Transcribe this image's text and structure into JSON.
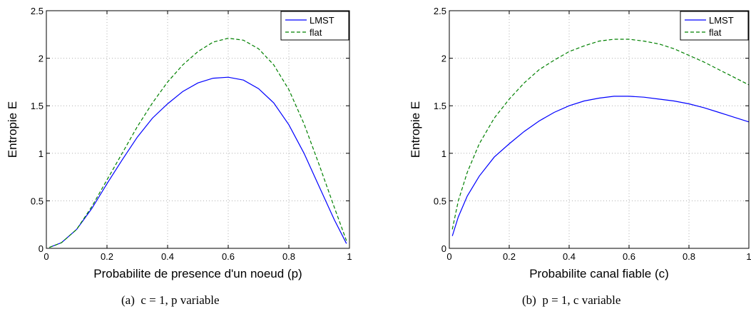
{
  "chart_data": [
    {
      "type": "line",
      "caption": {
        "tag": "(a)",
        "text": "c = 1, p variable"
      },
      "xlabel": "Probabilite de presence d'un noeud (p)",
      "ylabel": "Entropie E",
      "xlim": [
        0,
        1
      ],
      "ylim": [
        0,
        2.5
      ],
      "xticks": [
        "0",
        "0.2",
        "0.4",
        "0.6",
        "0.8",
        "1"
      ],
      "yticks": [
        "0",
        "0.5",
        "1",
        "1.5",
        "2",
        "2.5"
      ],
      "grid": true,
      "legend_position": "top-right",
      "series": [
        {
          "name": "LMST",
          "color": "#0000ff",
          "style": "solid",
          "x": [
            0.01,
            0.05,
            0.1,
            0.15,
            0.2,
            0.25,
            0.3,
            0.35,
            0.4,
            0.45,
            0.5,
            0.55,
            0.6,
            0.65,
            0.7,
            0.75,
            0.8,
            0.85,
            0.9,
            0.95,
            0.99
          ],
          "y": [
            0.01,
            0.06,
            0.2,
            0.42,
            0.68,
            0.93,
            1.17,
            1.37,
            1.52,
            1.65,
            1.74,
            1.79,
            1.8,
            1.77,
            1.68,
            1.53,
            1.3,
            1.0,
            0.65,
            0.3,
            0.05
          ]
        },
        {
          "name": "flat",
          "color": "#008000",
          "style": "dashed",
          "x": [
            0.01,
            0.05,
            0.1,
            0.15,
            0.2,
            0.25,
            0.3,
            0.35,
            0.4,
            0.45,
            0.5,
            0.55,
            0.6,
            0.65,
            0.7,
            0.75,
            0.8,
            0.85,
            0.9,
            0.95,
            0.99
          ],
          "y": [
            0.01,
            0.06,
            0.2,
            0.44,
            0.72,
            1.0,
            1.28,
            1.53,
            1.75,
            1.93,
            2.07,
            2.17,
            2.21,
            2.19,
            2.1,
            1.93,
            1.67,
            1.31,
            0.88,
            0.43,
            0.08
          ]
        }
      ]
    },
    {
      "type": "line",
      "caption": {
        "tag": "(b)",
        "text": "p = 1, c variable"
      },
      "xlabel": "Probabilite canal fiable (c)",
      "ylabel": "Entropie E",
      "xlim": [
        0,
        1
      ],
      "ylim": [
        0,
        2.5
      ],
      "xticks": [
        "0",
        "0.2",
        "0.4",
        "0.6",
        "0.8",
        "1"
      ],
      "yticks": [
        "0",
        "0.5",
        "1",
        "1.5",
        "2",
        "2.5"
      ],
      "grid": true,
      "legend_position": "top-right",
      "series": [
        {
          "name": "LMST",
          "color": "#0000ff",
          "style": "solid",
          "x": [
            0.01,
            0.03,
            0.06,
            0.1,
            0.15,
            0.2,
            0.25,
            0.3,
            0.35,
            0.4,
            0.45,
            0.5,
            0.55,
            0.6,
            0.65,
            0.7,
            0.75,
            0.8,
            0.85,
            0.9,
            0.95,
            1.0
          ],
          "y": [
            0.13,
            0.33,
            0.55,
            0.76,
            0.96,
            1.1,
            1.23,
            1.34,
            1.43,
            1.5,
            1.55,
            1.58,
            1.6,
            1.6,
            1.59,
            1.57,
            1.55,
            1.52,
            1.48,
            1.43,
            1.38,
            1.33
          ]
        },
        {
          "name": "flat",
          "color": "#008000",
          "style": "dashed",
          "x": [
            0.01,
            0.03,
            0.06,
            0.1,
            0.15,
            0.2,
            0.25,
            0.3,
            0.35,
            0.4,
            0.45,
            0.5,
            0.55,
            0.6,
            0.65,
            0.7,
            0.75,
            0.8,
            0.85,
            0.9,
            0.95,
            1.0
          ],
          "y": [
            0.2,
            0.5,
            0.8,
            1.1,
            1.37,
            1.57,
            1.74,
            1.88,
            1.98,
            2.07,
            2.13,
            2.18,
            2.2,
            2.2,
            2.18,
            2.15,
            2.1,
            2.03,
            1.96,
            1.88,
            1.8,
            1.72
          ]
        }
      ]
    }
  ]
}
